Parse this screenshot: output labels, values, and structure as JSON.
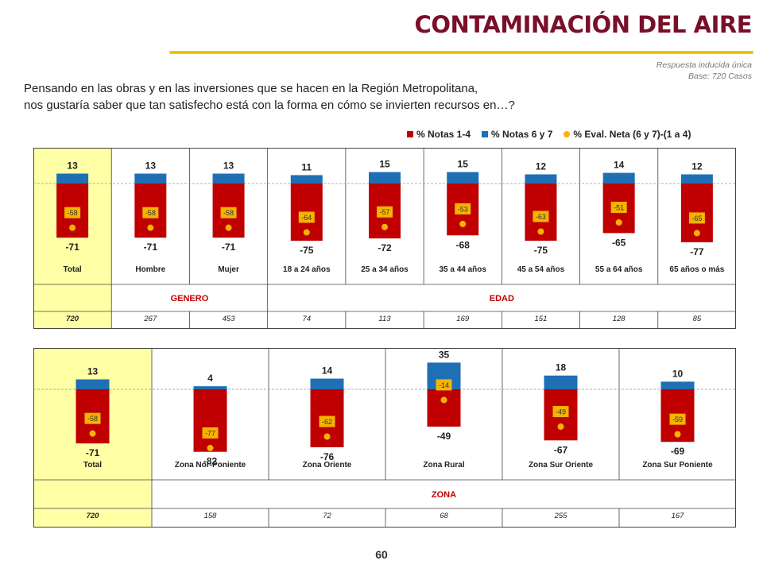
{
  "header": {
    "title": "CONTAMINACIÓN DEL AIRE",
    "note_line1": "Respuesta inducida única",
    "note_line2": "Base: 720 Casos"
  },
  "question": {
    "line1": "Pensando en las obras y en las inversiones que se hacen en la Región Metropolitana,",
    "line2": "nos gustaría saber que tan satisfecho está con la forma en cómo se invierten recursos en…?"
  },
  "legend": {
    "series": [
      {
        "label": "% Notas 1-4",
        "color": "#c00000",
        "marker": "square"
      },
      {
        "label": "% Notas 6 y 7",
        "color": "#1f6fb4",
        "marker": "square"
      },
      {
        "label": "% Eval. Neta (6 y 7)-(1 a 4)",
        "color": "#f5b400",
        "marker": "circle"
      }
    ]
  },
  "colors": {
    "negative": "#c00000",
    "positive": "#1f6fb4",
    "net": "#f5b400",
    "highlight": "#ffffa6"
  },
  "page_number": "60",
  "chart_data": [
    {
      "type": "bar",
      "ylim": [
        -85,
        40
      ],
      "categories": [
        "Total",
        "Hombre",
        "Mujer",
        "18 a 24 años",
        "25 a 34 años",
        "35 a 44 años",
        "45 a 54 años",
        "55 a 64 años",
        "65 años o más"
      ],
      "series": [
        {
          "name": "% Notas 1-4",
          "values": [
            -71,
            -71,
            -71,
            -75,
            -72,
            -68,
            -75,
            -65,
            -77
          ]
        },
        {
          "name": "% Notas 6 y 7",
          "values": [
            13,
            13,
            13,
            11,
            15,
            15,
            12,
            14,
            12
          ]
        },
        {
          "name": "% Eval. Neta (6 y 7)-(1 a 4)",
          "values": [
            -58,
            -58,
            -58,
            -64,
            -57,
            -53,
            -63,
            -51,
            -65
          ]
        }
      ],
      "groups": [
        {
          "label": "",
          "span": 1
        },
        {
          "label": "GENERO",
          "span": 2
        },
        {
          "label": "EDAD",
          "span": 6
        }
      ],
      "bases": [
        "720",
        "267",
        "453",
        "74",
        "113",
        "169",
        "151",
        "128",
        "85"
      ]
    },
    {
      "type": "bar",
      "ylim": [
        -90,
        40
      ],
      "categories": [
        "Total",
        "Zona Nor-Poniente",
        "Zona Oriente",
        "Zona Rural",
        "Zona Sur Oriente",
        "Zona Sur Poniente"
      ],
      "series": [
        {
          "name": "% Notas 1-4",
          "values": [
            -71,
            -82,
            -76,
            -49,
            -67,
            -69
          ]
        },
        {
          "name": "% Notas 6 y 7",
          "values": [
            13,
            4,
            14,
            35,
            18,
            10
          ]
        },
        {
          "name": "% Eval. Neta (6 y 7)-(1 a 4)",
          "values": [
            -58,
            -77,
            -62,
            -14,
            -49,
            -59
          ]
        }
      ],
      "groups": [
        {
          "label": "",
          "span": 1
        },
        {
          "label": "ZONA",
          "span": 5
        }
      ],
      "bases": [
        "720",
        "158",
        "72",
        "68",
        "255",
        "167"
      ]
    }
  ]
}
